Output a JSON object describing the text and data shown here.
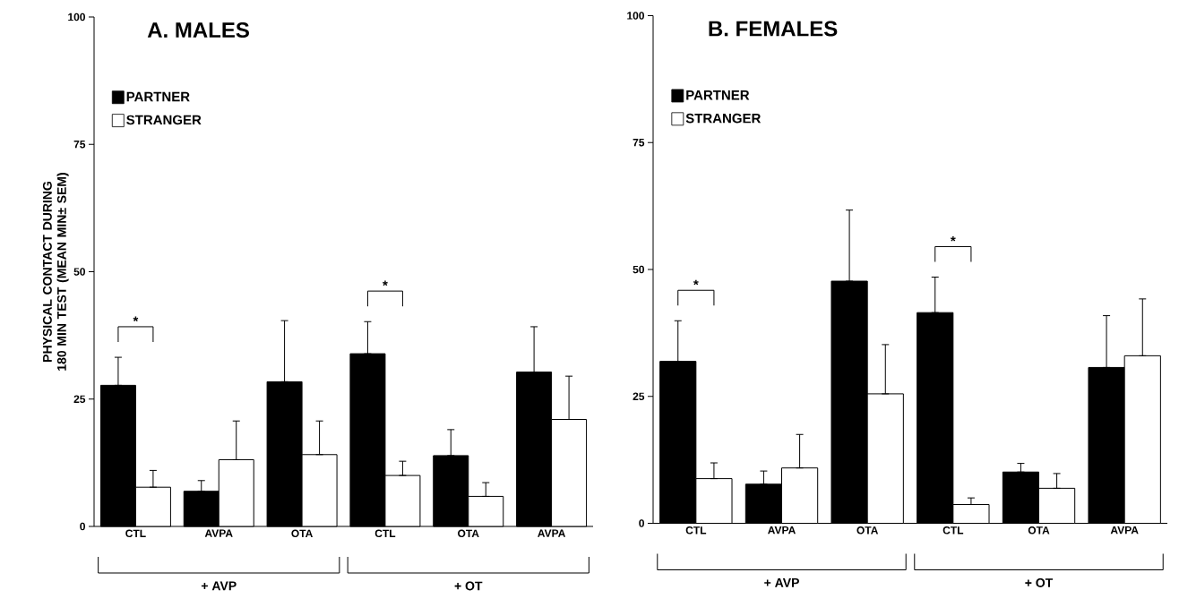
{
  "chart_data": [
    {
      "type": "bar",
      "title": "A. MALES",
      "ylabel": "PHYSICAL CONTACT DURING 180 MIN TEST (MEAN MIN± SEM)",
      "categories": [
        "CTL",
        "AVPA",
        "OTA",
        "CTL",
        "OTA",
        "AVPA"
      ],
      "series": [
        {
          "name": "PARTNER",
          "color": "#000000",
          "values": [
            27.7,
            6.9,
            28.4,
            33.9,
            13.9,
            30.3
          ],
          "errors": [
            [
              27.7,
              33.2
            ],
            [
              6.9,
              9.0
            ],
            [
              28.4,
              40.4
            ],
            [
              33.9,
              40.2
            ],
            [
              13.9,
              19.0
            ],
            [
              30.3,
              39.2
            ]
          ]
        },
        {
          "name": "STRANGER",
          "color": "#ffffff",
          "values": [
            7.7,
            13.1,
            14.1,
            10.0,
            5.9,
            21.0
          ],
          "errors": [
            [
              7.7,
              11.0
            ],
            [
              13.1,
              20.7
            ],
            [
              14.1,
              20.7
            ],
            [
              10.0,
              12.8
            ],
            [
              5.9,
              8.6
            ],
            [
              21.0,
              29.5
            ]
          ]
        }
      ],
      "ylim": [
        0,
        100
      ],
      "yticks": [
        0,
        25,
        50,
        75,
        100
      ],
      "legend": "top left",
      "grid": false,
      "annotations": [
        "*",
        "*",
        "+ AVP",
        "+ OT"
      ]
    },
    {
      "type": "bar",
      "title": "B. FEMALES",
      "categories": [
        "CTL",
        "AVPA",
        "OTA",
        "CTL",
        "OTA",
        "AVPA"
      ],
      "series": [
        {
          "name": "PARTNER",
          "color": "#000000",
          "values": [
            31.9,
            7.7,
            47.7,
            41.5,
            10.1,
            30.7
          ],
          "errors": [
            [
              31.9,
              39.9
            ],
            [
              7.7,
              10.3
            ],
            [
              47.7,
              61.7
            ],
            [
              41.5,
              48.5
            ],
            [
              10.1,
              11.8
            ],
            [
              30.7,
              40.9
            ]
          ]
        },
        {
          "name": "STRANGER",
          "color": "#ffffff",
          "values": [
            8.8,
            10.9,
            25.5,
            3.7,
            6.9,
            33.0
          ],
          "errors": [
            [
              8.8,
              11.9
            ],
            [
              10.9,
              17.5
            ],
            [
              25.5,
              35.2
            ],
            [
              3.7,
              5.0
            ],
            [
              6.9,
              9.8
            ],
            [
              33.0,
              44.2
            ]
          ]
        }
      ],
      "ylim": [
        0,
        100
      ],
      "yticks": [
        0,
        25,
        50,
        75,
        100
      ],
      "legend": "top left",
      "grid": false,
      "annotations": [
        "*",
        "*",
        "+ AVP",
        "+ OT"
      ]
    }
  ]
}
